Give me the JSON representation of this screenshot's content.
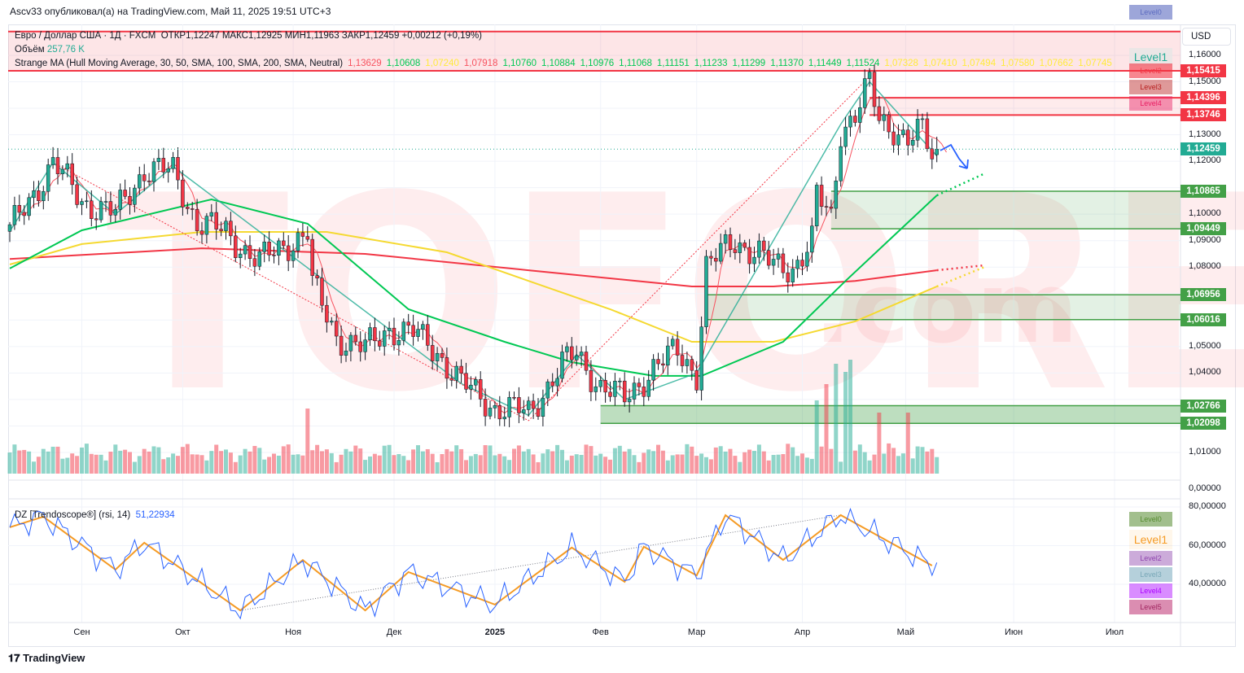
{
  "header": "Ascv33 опубликовал(а) на TradingView.com, Май 11, 2025 19:51 UTC+3",
  "legend": {
    "symbol": "Евро / Доллар США · 1Д · FXCM",
    "ohlc": "ОТКР1,12247  МАКС1,12925  МИН1,11963  ЗАКР1,12459  +0,00212 (+0,19%)",
    "volume_label": "Объём",
    "volume_value": "257,76 K",
    "ma_label": "Strange MA (Hull Moving Average, 30, 50, SMA, 100, SMA, 200, SMA, Neutral)",
    "ma_values": [
      {
        "v": "1,13629",
        "c": "#f7525f"
      },
      {
        "v": "1,10608",
        "c": "#00c853"
      },
      {
        "v": "1,07240",
        "c": "#ffeb3b"
      },
      {
        "v": "1,07918",
        "c": "#f7525f"
      },
      {
        "v": "1,10760",
        "c": "#00c853"
      },
      {
        "v": "1,10884",
        "c": "#00c853"
      },
      {
        "v": "1,10976",
        "c": "#00c853"
      },
      {
        "v": "1,11068",
        "c": "#00c853"
      },
      {
        "v": "1,11151",
        "c": "#00c853"
      },
      {
        "v": "1,11233",
        "c": "#00c853"
      },
      {
        "v": "1,11299",
        "c": "#00c853"
      },
      {
        "v": "1,11370",
        "c": "#00c853"
      },
      {
        "v": "1,11449",
        "c": "#00c853"
      },
      {
        "v": "1,11524",
        "c": "#00c853"
      },
      {
        "v": "1,07328",
        "c": "#ffeb3b"
      },
      {
        "v": "1,07410",
        "c": "#ffeb3b"
      },
      {
        "v": "1,07494",
        "c": "#ffeb3b"
      },
      {
        "v": "1,07580",
        "c": "#ffeb3b"
      },
      {
        "v": "1,07662",
        "c": "#ffeb3b"
      },
      {
        "v": "1,07745",
        "c": "#ffeb3b"
      }
    ]
  },
  "currency": "USD",
  "watermark": "TOFOREX",
  "watermark2": ".com",
  "levels_top": [
    "Level0",
    "Level1",
    "Level2",
    "Level3",
    "Level4"
  ],
  "levels_rsi": [
    "Level0",
    "Level1",
    "Level2",
    "Level3",
    "Level4",
    "Level5"
  ],
  "rsi_legend": {
    "label": "DZ [Trendoscope®] (rsi, 14)",
    "value": "51,22934"
  },
  "logo": "TradingView",
  "colors": {
    "up": "#22ab94",
    "down": "#f23645",
    "green_zone": "#43a047",
    "hma": "#f7525f",
    "sma50": "#00c853",
    "sma100": "#f5d931",
    "sma200": "#f23645",
    "rsi": "#2962ff",
    "zigzag": "#f59b25"
  },
  "chart_data": {
    "type": "candlestick",
    "title": "EUR/USD 1D FXCM",
    "bars": 194,
    "last_bar": {
      "open": 1.12247,
      "high": 1.12925,
      "low": 1.11963,
      "close": 1.12459
    },
    "close_path": [
      [
        0,
        1.0935
      ],
      [
        9,
        1.1195
      ],
      [
        15,
        1.105
      ],
      [
        22,
        1.1
      ],
      [
        28,
        1.117
      ],
      [
        34,
        1.116
      ],
      [
        39,
        1.097
      ],
      [
        45,
        1.093
      ],
      [
        52,
        1.082
      ],
      [
        57,
        1.088
      ],
      [
        62,
        1.093
      ],
      [
        63,
        1.073
      ],
      [
        68,
        1.054
      ],
      [
        74,
        1.049
      ],
      [
        79,
        1.057
      ],
      [
        84,
        1.055
      ],
      [
        89,
        1.048
      ],
      [
        94,
        1.036
      ],
      [
        101,
        1.027
      ],
      [
        108,
        1.025
      ],
      [
        115,
        1.043
      ],
      [
        118,
        1.047
      ],
      [
        123,
        1.035
      ],
      [
        128,
        1.03
      ],
      [
        134,
        1.042
      ],
      [
        139,
        1.048
      ],
      [
        143,
        1.04
      ],
      [
        145,
        1.08
      ],
      [
        151,
        1.09
      ],
      [
        156,
        1.085
      ],
      [
        159,
        1.08
      ],
      [
        163,
        1.08
      ],
      [
        167,
        1.09
      ],
      [
        168,
        1.107
      ],
      [
        171,
        1.098
      ],
      [
        173,
        1.132
      ],
      [
        176,
        1.138
      ],
      [
        179,
        1.149
      ],
      [
        181,
        1.135
      ],
      [
        184,
        1.133
      ],
      [
        187,
        1.128
      ],
      [
        190,
        1.131
      ],
      [
        192,
        1.122
      ],
      [
        193,
        1.12459
      ]
    ],
    "sma50": [
      [
        0,
        1.0795
      ],
      [
        15,
        1.0939
      ],
      [
        42,
        1.1056
      ],
      [
        62,
        1.0964
      ],
      [
        83,
        1.0641
      ],
      [
        103,
        1.0518
      ],
      [
        117,
        1.0441
      ],
      [
        134,
        1.0389
      ],
      [
        144,
        1.0389
      ],
      [
        161,
        1.0518
      ],
      [
        174,
        1.0748
      ],
      [
        184,
        1.0918
      ],
      [
        193,
        1.1071
      ]
    ],
    "sma100": [
      [
        0,
        1.081
      ],
      [
        15,
        1.0887
      ],
      [
        40,
        1.0933
      ],
      [
        66,
        1.0933
      ],
      [
        91,
        1.0856
      ],
      [
        108,
        1.0748
      ],
      [
        125,
        1.0641
      ],
      [
        142,
        1.0518
      ],
      [
        159,
        1.0518
      ],
      [
        176,
        1.0595
      ],
      [
        193,
        1.0727
      ]
    ],
    "sma200": [
      [
        0,
        1.0831
      ],
      [
        40,
        1.0871
      ],
      [
        74,
        1.085
      ],
      [
        108,
        1.0788
      ],
      [
        142,
        1.0727
      ],
      [
        159,
        1.0727
      ],
      [
        176,
        1.0748
      ],
      [
        193,
        1.0788
      ]
    ],
    "projection": {
      "sma50": [
        203,
        1.1154
      ],
      "sma100": [
        203,
        1.0801
      ],
      "sma200": [
        203,
        1.0807
      ]
    },
    "volume_spikes": [
      [
        62,
        80
      ],
      [
        168,
        90
      ],
      [
        170,
        110
      ],
      [
        172,
        135
      ],
      [
        174,
        125
      ],
      [
        175,
        140
      ],
      [
        181,
        75
      ],
      [
        187,
        75
      ]
    ],
    "resistance_lines": [
      1.15415,
      1.14396,
      1.13746
    ],
    "resistance_band": [
      1.15415,
      1.169
    ],
    "support_zones": [
      {
        "from_bar": 171,
        "top": 1.10865,
        "bottom": 1.09449
      },
      {
        "from_bar": 145,
        "top": 1.06956,
        "bottom": 1.06016
      },
      {
        "from_bar": 123,
        "top": 1.02766,
        "bottom": 1.02098
      }
    ],
    "price_badges": [
      {
        "v": "1,15415",
        "p": 1.15415,
        "c": "#f23645"
      },
      {
        "v": "1,14396",
        "p": 1.14396,
        "c": "#f23645"
      },
      {
        "v": "1,13746",
        "p": 1.13746,
        "c": "#f23645"
      },
      {
        "v": "1,12459",
        "p": 1.12459,
        "c": "#22ab94"
      },
      {
        "v": "1,10865",
        "p": 1.10865,
        "c": "#43a047"
      },
      {
        "v": "1,09449",
        "p": 1.09449,
        "c": "#43a047"
      },
      {
        "v": "1,06956",
        "p": 1.06956,
        "c": "#43a047"
      },
      {
        "v": "1,06016",
        "p": 1.06016,
        "c": "#43a047"
      },
      {
        "v": "1,02766",
        "p": 1.02766,
        "c": "#43a047"
      },
      {
        "v": "1,02098",
        "p": 1.02098,
        "c": "#43a047"
      }
    ],
    "price_ticks": [
      {
        "v": "1,16000",
        "p": 1.16
      },
      {
        "v": "1,15000",
        "p": 1.15
      },
      {
        "v": "1,13000",
        "p": 1.13
      },
      {
        "v": "1,12000",
        "p": 1.12
      },
      {
        "v": "1,10000",
        "p": 1.1
      },
      {
        "v": "1,09000",
        "p": 1.09
      },
      {
        "v": "1,08000",
        "p": 1.08
      },
      {
        "v": "1,05000",
        "p": 1.05
      },
      {
        "v": "1,04000",
        "p": 1.04
      },
      {
        "v": "1,01000",
        "p": 1.01
      }
    ],
    "volume_zero_tick": "0,00000",
    "ylim": [
      1.005,
      1.169
    ],
    "time_ticks": [
      {
        "v": "Сен",
        "b": 15
      },
      {
        "v": "Окт",
        "b": 36
      },
      {
        "v": "Ноя",
        "b": 59
      },
      {
        "v": "Дек",
        "b": 80
      },
      {
        "v": "2025",
        "b": 101
      },
      {
        "v": "Фев",
        "b": 123
      },
      {
        "v": "Мар",
        "b": 143
      },
      {
        "v": "Апр",
        "b": 165
      },
      {
        "v": "Май",
        "b": 186.5
      },
      {
        "v": "Июн",
        "b": 209
      },
      {
        "v": "Июл",
        "b": 230
      }
    ],
    "rsi": {
      "last": 51.22934,
      "ticks": [
        {
          "v": "80,00000",
          "r": 80
        },
        {
          "v": "60,00000",
          "r": 60
        },
        {
          "v": "40,00000",
          "r": 40
        }
      ],
      "zigzag": [
        [
          0,
          69.5
        ],
        [
          7,
          75
        ],
        [
          22,
          47.6
        ],
        [
          28,
          61.5
        ],
        [
          48,
          26.5
        ],
        [
          61,
          52.6
        ],
        [
          74,
          26.5
        ],
        [
          83,
          46.3
        ],
        [
          101,
          29.5
        ],
        [
          117,
          59
        ],
        [
          128,
          41.3
        ],
        [
          132,
          59.4
        ],
        [
          143,
          44.6
        ],
        [
          149,
          75.8
        ],
        [
          161,
          52.6
        ],
        [
          173,
          75.8
        ],
        [
          192,
          49.7
        ]
      ]
    }
  }
}
